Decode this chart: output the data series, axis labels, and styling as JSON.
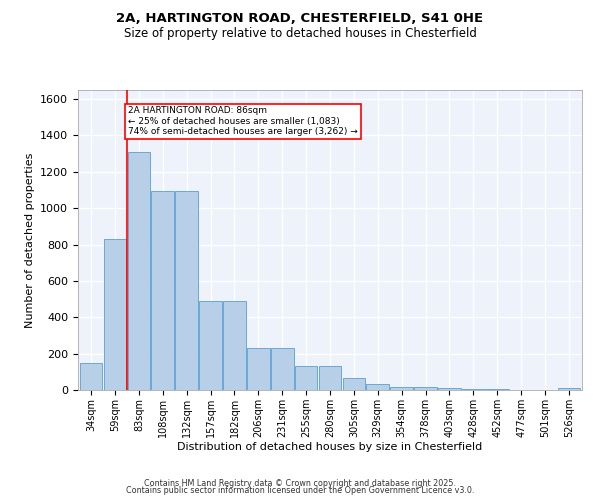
{
  "title_line1": "2A, HARTINGTON ROAD, CHESTERFIELD, S41 0HE",
  "title_line2": "Size of property relative to detached houses in Chesterfield",
  "xlabel": "Distribution of detached houses by size in Chesterfield",
  "ylabel": "Number of detached properties",
  "categories": [
    "34sqm",
    "59sqm",
    "83sqm",
    "108sqm",
    "132sqm",
    "157sqm",
    "182sqm",
    "206sqm",
    "231sqm",
    "255sqm",
    "280sqm",
    "305sqm",
    "329sqm",
    "354sqm",
    "378sqm",
    "403sqm",
    "428sqm",
    "452sqm",
    "477sqm",
    "501sqm",
    "526sqm"
  ],
  "values": [
    148,
    828,
    1311,
    1094,
    1094,
    490,
    490,
    232,
    232,
    133,
    133,
    67,
    35,
    18,
    18,
    10,
    5,
    5,
    2,
    0,
    10
  ],
  "bar_color": "#b8cfe8",
  "bar_edge_color": "#5a9fd4",
  "vline_position": 1.5,
  "vline_color": "red",
  "annotation_text": "2A HARTINGTON ROAD: 86sqm\n← 25% of detached houses are smaller (1,083)\n74% of semi-detached houses are larger (3,262) →",
  "annotation_box_color": "white",
  "annotation_box_edge": "red",
  "ylim": [
    0,
    1650
  ],
  "yticks": [
    0,
    200,
    400,
    600,
    800,
    1000,
    1200,
    1400,
    1600
  ],
  "background_color": "#eef2fb",
  "grid_color": "white",
  "footnote_line1": "Contains HM Land Registry data © Crown copyright and database right 2025.",
  "footnote_line2": "Contains public sector information licensed under the Open Government Licence v3.0."
}
